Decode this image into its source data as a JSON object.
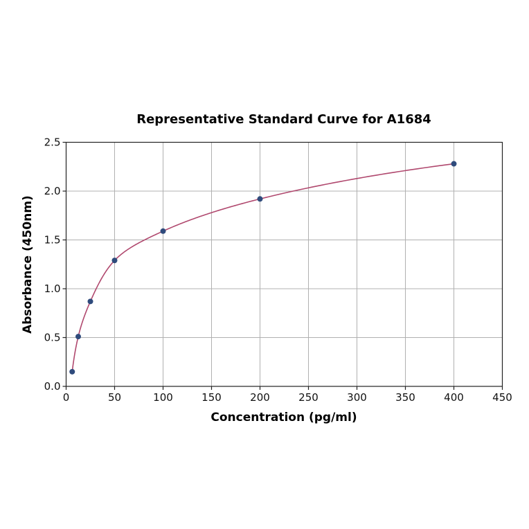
{
  "chart_data": {
    "type": "scatter",
    "title": "Representative Standard Curve for A1684",
    "xlabel": "Concentration (pg/ml)",
    "ylabel": "Absorbance (450nm)",
    "xlim": [
      0,
      450
    ],
    "ylim": [
      0,
      2.5
    ],
    "xticks": [
      0,
      50,
      100,
      150,
      200,
      250,
      300,
      350,
      400,
      450
    ],
    "yticks": [
      0.0,
      0.5,
      1.0,
      1.5,
      2.0,
      2.5
    ],
    "xtick_labels": [
      "0",
      "50",
      "100",
      "150",
      "200",
      "250",
      "300",
      "350",
      "400",
      "450"
    ],
    "ytick_labels": [
      "0.0",
      "0.5",
      "1.0",
      "1.5",
      "2.0",
      "2.5"
    ],
    "grid": true,
    "legend": null,
    "series": [
      {
        "name": "Standard points",
        "kind": "scatter",
        "color": "#2f4b7c",
        "x": [
          6.25,
          12.5,
          25,
          50,
          100,
          200,
          400
        ],
        "y": [
          0.15,
          0.51,
          0.87,
          1.29,
          1.59,
          1.92,
          2.28
        ]
      },
      {
        "name": "Fitted curve",
        "kind": "line",
        "color": "#b0486e",
        "x_range": [
          6.25,
          400
        ]
      }
    ]
  },
  "colors": {
    "point": "#2f4b7c",
    "curve": "#b0486e",
    "grid": "#b0b0b0",
    "frame": "#222222"
  }
}
